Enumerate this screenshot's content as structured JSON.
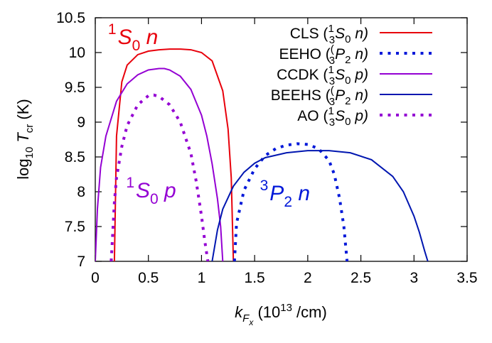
{
  "chart_data": {
    "type": "line",
    "xlabel": {
      "base": "k",
      "sub1": "F",
      "sub2": "x",
      "units_pre": " (10",
      "units_sup": "13",
      "units_post": " /cm)"
    },
    "ylabel": {
      "pre": "log",
      "sub": "10",
      "var": "T",
      "var_sub": "cr",
      "post": " (K)"
    },
    "xlim": [
      0,
      3.5
    ],
    "ylim": [
      7,
      10.5
    ],
    "xticks": [
      0,
      0.5,
      1,
      1.5,
      2,
      2.5,
      3,
      3.5
    ],
    "xtick_labels": [
      "0",
      "0.5",
      "1",
      "1.5",
      "2",
      "2.5",
      "3",
      "3.5"
    ],
    "yticks": [
      7,
      7.5,
      8,
      8.5,
      9,
      9.5,
      10,
      10.5
    ],
    "ytick_labels": [
      "7",
      "7.5",
      "8",
      "8.5",
      "9",
      "9.5",
      "10",
      "10.5"
    ],
    "grid": false,
    "legend_position": "top-right",
    "series": [
      {
        "name": "CLS",
        "channel": {
          "sup": "1",
          "sub": "3",
          "letter": "S",
          "idx": "0",
          "particle": "n"
        },
        "color": "#e8000b",
        "dash": "solid",
        "x": [
          0.18,
          0.2,
          0.25,
          0.3,
          0.4,
          0.5,
          0.6,
          0.7,
          0.8,
          0.9,
          1.0,
          1.1,
          1.2,
          1.25,
          1.28,
          1.3
        ],
        "y": [
          7.0,
          8.8,
          9.58,
          9.82,
          9.97,
          10.02,
          10.04,
          10.05,
          10.05,
          10.04,
          10.0,
          9.88,
          9.45,
          8.9,
          8.2,
          7.0
        ]
      },
      {
        "name": "EEHO",
        "channel": {
          "sup": "(",
          "sub": "3",
          "letter": "P",
          "idx": "2",
          "particle": "n"
        },
        "color": "#0018d9",
        "dash": "dotted",
        "x": [
          1.31,
          1.33,
          1.4,
          1.5,
          1.6,
          1.7,
          1.8,
          1.9,
          2.0,
          2.1,
          2.2,
          2.25,
          2.3,
          2.34,
          2.37
        ],
        "y": [
          7.0,
          7.55,
          8.02,
          8.33,
          8.52,
          8.62,
          8.67,
          8.69,
          8.68,
          8.62,
          8.45,
          8.25,
          7.9,
          7.5,
          7.0
        ]
      },
      {
        "name": "CCDK",
        "channel": {
          "sup": "1",
          "sub": "3",
          "letter": "S",
          "idx": "0",
          "particle": "p"
        },
        "color": "#9400d3",
        "dash": "solid",
        "x": [
          0.0,
          0.02,
          0.05,
          0.1,
          0.2,
          0.3,
          0.4,
          0.5,
          0.6,
          0.65,
          0.7,
          0.8,
          0.9,
          1.0,
          1.05,
          1.1,
          1.15,
          1.18,
          1.2
        ],
        "y": [
          7.0,
          7.75,
          8.35,
          8.8,
          9.3,
          9.55,
          9.68,
          9.75,
          9.77,
          9.77,
          9.75,
          9.66,
          9.47,
          9.1,
          8.8,
          8.4,
          7.9,
          7.5,
          7.0
        ]
      },
      {
        "name": "BEEHS",
        "channel": {
          "sup": "(",
          "sub": "3",
          "letter": "P",
          "idx": "2",
          "particle": "n"
        },
        "color": "#0016b0",
        "dash": "solid",
        "x": [
          1.1,
          1.15,
          1.2,
          1.3,
          1.4,
          1.5,
          1.6,
          1.8,
          2.0,
          2.2,
          2.4,
          2.6,
          2.8,
          2.9,
          3.0,
          3.05,
          3.1,
          3.13
        ],
        "y": [
          7.0,
          7.45,
          7.75,
          8.08,
          8.28,
          8.41,
          8.49,
          8.56,
          8.59,
          8.59,
          8.56,
          8.46,
          8.22,
          8.0,
          7.65,
          7.42,
          7.15,
          7.0
        ]
      },
      {
        "name": "AO",
        "channel": {
          "sup": "1",
          "sub": "3",
          "letter": "S",
          "idx": "0",
          "particle": "p"
        },
        "color": "#9400d3",
        "dash": "dotted",
        "x": [
          0.15,
          0.18,
          0.2,
          0.25,
          0.3,
          0.4,
          0.5,
          0.55,
          0.6,
          0.7,
          0.8,
          0.9,
          0.95,
          1.0,
          1.03,
          1.06
        ],
        "y": [
          7.0,
          7.85,
          8.2,
          8.65,
          8.95,
          9.25,
          9.38,
          9.39,
          9.37,
          9.25,
          9.0,
          8.55,
          8.15,
          7.65,
          7.3,
          7.0
        ]
      }
    ],
    "annotations": [
      {
        "sup": "1",
        "letter": "S",
        "sub": "0",
        "particle": "n",
        "color": "#e8000b",
        "at": [
          0.12,
          10.12
        ]
      },
      {
        "sup": "1",
        "letter": "S",
        "sub": "0",
        "particle": "p",
        "color": "#9400d3",
        "at": [
          0.29,
          7.92
        ]
      },
      {
        "sup": "3",
        "letter": "P",
        "sub": "2",
        "particle": "n",
        "color": "#0018d9",
        "at": [
          1.55,
          7.88
        ]
      }
    ]
  }
}
